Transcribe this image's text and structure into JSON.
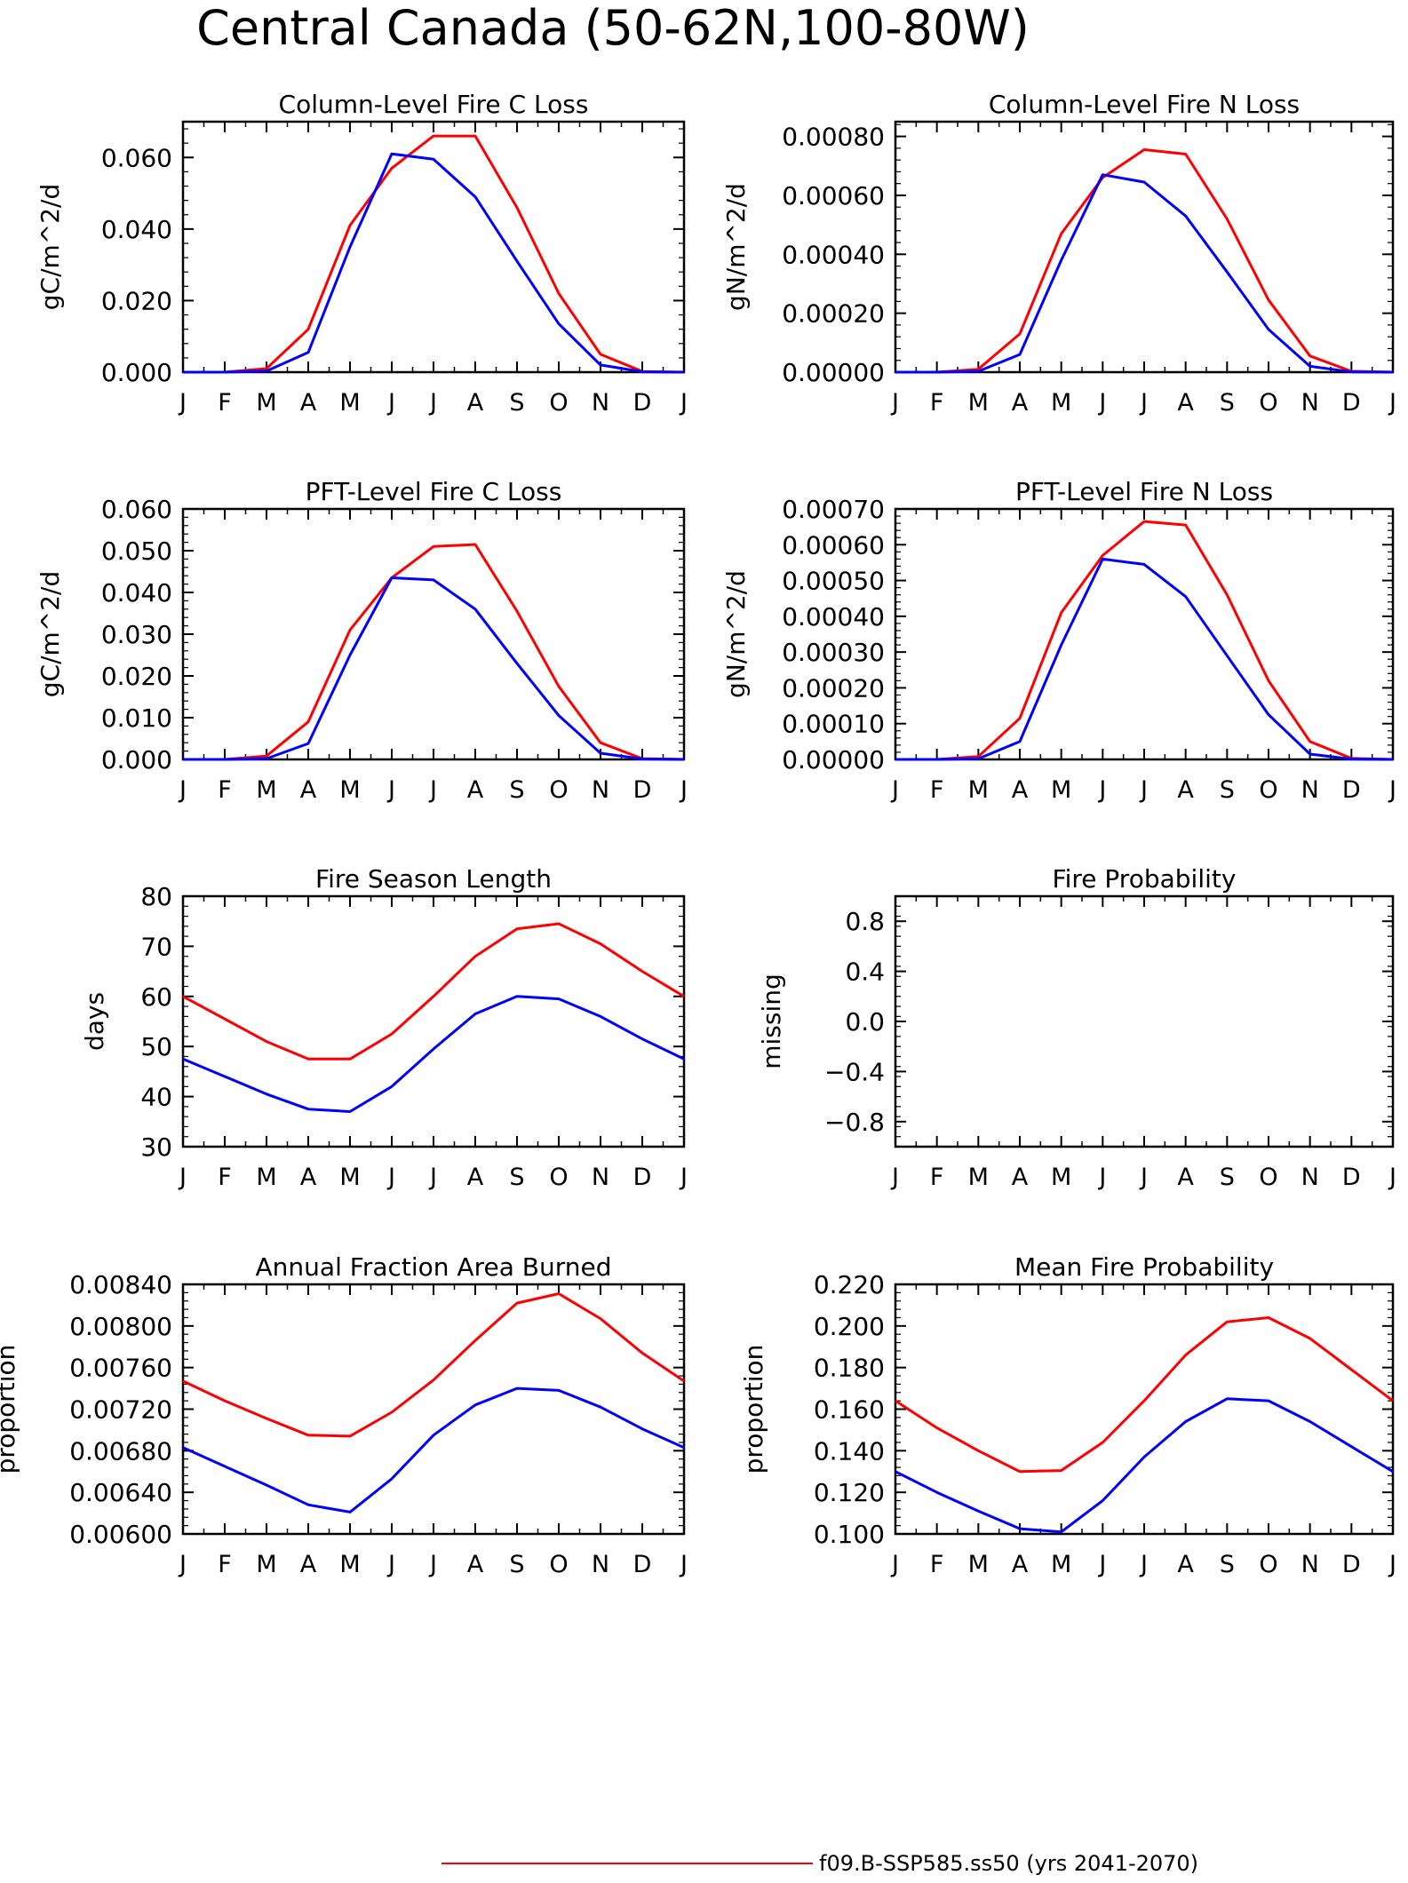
{
  "page_title": "Central Canada (50-62N,100-80W)",
  "colors": {
    "red_series": "#ff0000",
    "blue_series": "#0000ff",
    "axis": "#000000"
  },
  "months": [
    "J",
    "F",
    "M",
    "A",
    "M",
    "J",
    "J",
    "A",
    "S",
    "O",
    "N",
    "D",
    "J"
  ],
  "legend": {
    "entries": [
      {
        "label": "f09.B-SSP585.ss50 (yrs 2041-2070)",
        "color": "#ff0000"
      }
    ]
  },
  "chart_data": [
    {
      "type": "line",
      "title": "Column-Level Fire C Loss",
      "ylabel": "gC/m^2/d",
      "ylim": [
        0,
        0.07
      ],
      "yticks": [
        0,
        0.02,
        0.04,
        0.06
      ],
      "ytick_labels": [
        "0.000",
        "0.020",
        "0.040",
        "0.060"
      ],
      "categories": [
        "J",
        "F",
        "M",
        "A",
        "M",
        "J",
        "J",
        "A",
        "S",
        "O",
        "N",
        "D",
        "J"
      ],
      "series": [
        {
          "color": "#ff0000",
          "values": [
            0,
            0,
            0.001,
            0.012,
            0.041,
            0.057,
            0.066,
            0.066,
            0.046,
            0.022,
            0.005,
            0.0002,
            0
          ]
        },
        {
          "color": "#0000ff",
          "values": [
            0,
            0,
            0.0003,
            0.0055,
            0.035,
            0.061,
            0.0595,
            0.049,
            0.031,
            0.0135,
            0.002,
            0.0001,
            0
          ]
        }
      ]
    },
    {
      "type": "line",
      "title": "Column-Level Fire N Loss",
      "ylabel": "gN/m^2/d",
      "ylim": [
        0,
        0.00085
      ],
      "yticks": [
        0,
        0.0002,
        0.0004,
        0.0006,
        0.0008
      ],
      "ytick_labels": [
        "0.00000",
        "0.00020",
        "0.00040",
        "0.00060",
        "0.00080"
      ],
      "categories": [
        "J",
        "F",
        "M",
        "A",
        "M",
        "J",
        "J",
        "A",
        "S",
        "O",
        "N",
        "D",
        "J"
      ],
      "series": [
        {
          "color": "#ff0000",
          "values": [
            0,
            0,
            1e-05,
            0.00013,
            0.00047,
            0.00066,
            0.000755,
            0.00074,
            0.00052,
            0.000245,
            5.5e-05,
            3e-06,
            0
          ]
        },
        {
          "color": "#0000ff",
          "values": [
            0,
            0,
            3e-06,
            6e-05,
            0.00038,
            0.00067,
            0.000645,
            0.00053,
            0.00034,
            0.000145,
            2e-05,
            1e-06,
            0
          ]
        }
      ]
    },
    {
      "type": "line",
      "title": "PFT-Level Fire C Loss",
      "ylabel": "gC/m^2/d",
      "ylim": [
        0,
        0.06
      ],
      "yticks": [
        0,
        0.01,
        0.02,
        0.03,
        0.04,
        0.05,
        0.06
      ],
      "ytick_labels": [
        "0.000",
        "0.010",
        "0.020",
        "0.030",
        "0.040",
        "0.050",
        "0.060"
      ],
      "categories": [
        "J",
        "F",
        "M",
        "A",
        "M",
        "J",
        "J",
        "A",
        "S",
        "O",
        "N",
        "D",
        "J"
      ],
      "series": [
        {
          "color": "#ff0000",
          "values": [
            0,
            0,
            0.0008,
            0.009,
            0.031,
            0.0435,
            0.051,
            0.0515,
            0.0355,
            0.0175,
            0.004,
            0.0002,
            0
          ]
        },
        {
          "color": "#0000ff",
          "values": [
            0,
            0,
            0.0002,
            0.0038,
            0.025,
            0.0435,
            0.043,
            0.036,
            0.023,
            0.0105,
            0.0015,
            0.0001,
            0
          ]
        }
      ]
    },
    {
      "type": "line",
      "title": "PFT-Level Fire N Loss",
      "ylabel": "gN/m^2/d",
      "ylim": [
        0,
        0.0007
      ],
      "yticks": [
        0,
        0.0001,
        0.0002,
        0.0003,
        0.0004,
        0.0005,
        0.0006,
        0.0007
      ],
      "ytick_labels": [
        "0.00000",
        "0.00010",
        "0.00020",
        "0.00030",
        "0.00040",
        "0.00050",
        "0.00060",
        "0.00070"
      ],
      "categories": [
        "J",
        "F",
        "M",
        "A",
        "M",
        "J",
        "J",
        "A",
        "S",
        "O",
        "N",
        "D",
        "J"
      ],
      "series": [
        {
          "color": "#ff0000",
          "values": [
            0,
            0,
            8e-06,
            0.000115,
            0.00041,
            0.00057,
            0.000665,
            0.000655,
            0.00046,
            0.00022,
            5e-05,
            3e-06,
            0
          ]
        },
        {
          "color": "#0000ff",
          "values": [
            0,
            0,
            2e-06,
            5e-05,
            0.00032,
            0.00056,
            0.000545,
            0.000455,
            0.00029,
            0.000125,
            1.5e-05,
            1e-06,
            0
          ]
        }
      ]
    },
    {
      "type": "line",
      "title": "Fire Season Length",
      "ylabel": "days",
      "ylim": [
        30,
        80
      ],
      "yticks": [
        30,
        40,
        50,
        60,
        70,
        80
      ],
      "ytick_labels": [
        "30",
        "40",
        "50",
        "60",
        "70",
        "80"
      ],
      "categories": [
        "J",
        "F",
        "M",
        "A",
        "M",
        "J",
        "J",
        "A",
        "S",
        "O",
        "N",
        "D",
        "J"
      ],
      "series": [
        {
          "color": "#ff0000",
          "values": [
            60,
            55.5,
            51,
            47.5,
            47.5,
            52.5,
            60,
            68,
            73.5,
            74.5,
            70.5,
            65,
            60
          ]
        },
        {
          "color": "#0000ff",
          "values": [
            47.5,
            44,
            40.5,
            37.5,
            37,
            42,
            49.5,
            56.5,
            60,
            59.5,
            56,
            51.5,
            47.5
          ]
        }
      ]
    },
    {
      "type": "line",
      "title": "Fire Probability",
      "ylabel": "missing",
      "ylim": [
        -1,
        1
      ],
      "yticks": [
        -0.8,
        -0.4,
        0,
        0.4,
        0.8
      ],
      "ytick_labels": [
        "−0.8",
        "−0.4",
        "0.0",
        "0.4",
        "0.8"
      ],
      "categories": [
        "J",
        "F",
        "M",
        "A",
        "M",
        "J",
        "J",
        "A",
        "S",
        "O",
        "N",
        "D",
        "J"
      ],
      "series": []
    },
    {
      "type": "line",
      "title": "Annual Fraction Area Burned",
      "ylabel": "proportion",
      "ylim": [
        0.006,
        0.0084
      ],
      "yticks": [
        0.006,
        0.0064,
        0.0068,
        0.0072,
        0.0076,
        0.008,
        0.0084
      ],
      "ytick_labels": [
        "0.00600",
        "0.00640",
        "0.00680",
        "0.00720",
        "0.00760",
        "0.00800",
        "0.00840"
      ],
      "categories": [
        "J",
        "F",
        "M",
        "A",
        "M",
        "J",
        "J",
        "A",
        "S",
        "O",
        "N",
        "D",
        "J"
      ],
      "series": [
        {
          "color": "#ff0000",
          "values": [
            0.00747,
            0.00728,
            0.00711,
            0.00695,
            0.00694,
            0.00717,
            0.00748,
            0.00786,
            0.00822,
            0.00831,
            0.00807,
            0.00774,
            0.00747
          ]
        },
        {
          "color": "#0000ff",
          "values": [
            0.00683,
            0.00665,
            0.00647,
            0.00628,
            0.00621,
            0.00653,
            0.00695,
            0.00724,
            0.0074,
            0.00738,
            0.00722,
            0.00701,
            0.00683
          ]
        }
      ]
    },
    {
      "type": "line",
      "title": "Mean Fire Probability",
      "ylabel": "proportion",
      "ylim": [
        0.1,
        0.22
      ],
      "yticks": [
        0.1,
        0.12,
        0.14,
        0.16,
        0.18,
        0.2,
        0.22
      ],
      "ytick_labels": [
        "0.100",
        "0.120",
        "0.140",
        "0.160",
        "0.180",
        "0.200",
        "0.220"
      ],
      "categories": [
        "J",
        "F",
        "M",
        "A",
        "M",
        "J",
        "J",
        "A",
        "S",
        "O",
        "N",
        "D",
        "J"
      ],
      "series": [
        {
          "color": "#ff0000",
          "values": [
            0.164,
            0.151,
            0.14,
            0.13,
            0.1305,
            0.144,
            0.164,
            0.186,
            0.202,
            0.204,
            0.194,
            0.179,
            0.164
          ]
        },
        {
          "color": "#0000ff",
          "values": [
            0.13,
            0.12,
            0.111,
            0.1025,
            0.101,
            0.116,
            0.137,
            0.154,
            0.165,
            0.164,
            0.154,
            0.142,
            0.13
          ]
        }
      ]
    }
  ]
}
